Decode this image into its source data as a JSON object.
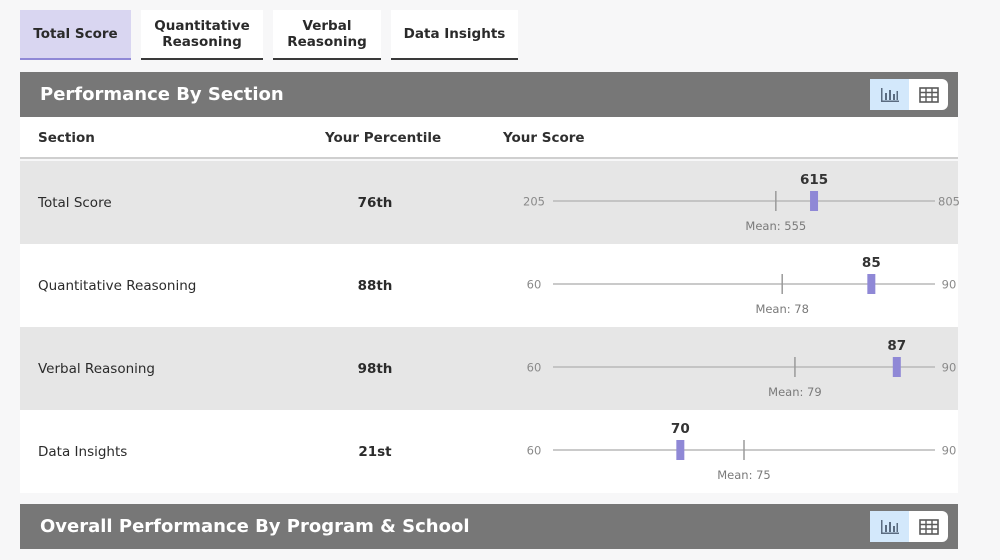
{
  "tabs": [
    {
      "label": "Total Score",
      "active": true
    },
    {
      "label": "Quantitative\nReasoning",
      "active": false
    },
    {
      "label": "Verbal\nReasoning",
      "active": false
    },
    {
      "label": "Data Insights",
      "active": false
    }
  ],
  "section_panel": {
    "title": "Performance By Section",
    "columns": {
      "section": "Section",
      "percentile": "Your Percentile",
      "score": "Your Score"
    },
    "rows": [
      {
        "name": "Total Score",
        "percentile": "76th",
        "min": 205,
        "max": 805,
        "score": 615,
        "mean": 555,
        "min_label": "205",
        "max_label": "805",
        "score_label": "615",
        "mean_label": "Mean: 555"
      },
      {
        "name": "Quantitative Reasoning",
        "percentile": "88th",
        "min": 60,
        "max": 90,
        "score": 85,
        "mean": 78,
        "min_label": "60",
        "max_label": "90",
        "score_label": "85",
        "mean_label": "Mean: 78"
      },
      {
        "name": "Verbal Reasoning",
        "percentile": "98th",
        "min": 60,
        "max": 90,
        "score": 87,
        "mean": 79,
        "min_label": "60",
        "max_label": "90",
        "score_label": "87",
        "mean_label": "Mean: 79"
      },
      {
        "name": "Data Insights",
        "percentile": "21st",
        "min": 60,
        "max": 90,
        "score": 70,
        "mean": 75,
        "min_label": "60",
        "max_label": "90",
        "score_label": "70",
        "mean_label": "Mean: 75"
      }
    ]
  },
  "program_panel": {
    "title": "Overall Performance By Program & School"
  },
  "view_toggle": {
    "chart_icon": "bar-chart-icon",
    "table_icon": "table-grid-icon",
    "active": "chart"
  },
  "colors": {
    "accent": "#8f88d6",
    "tab_active_bg": "#d9d6f1",
    "header_bg": "#777777",
    "toggle_active": "#d3e8fb"
  }
}
